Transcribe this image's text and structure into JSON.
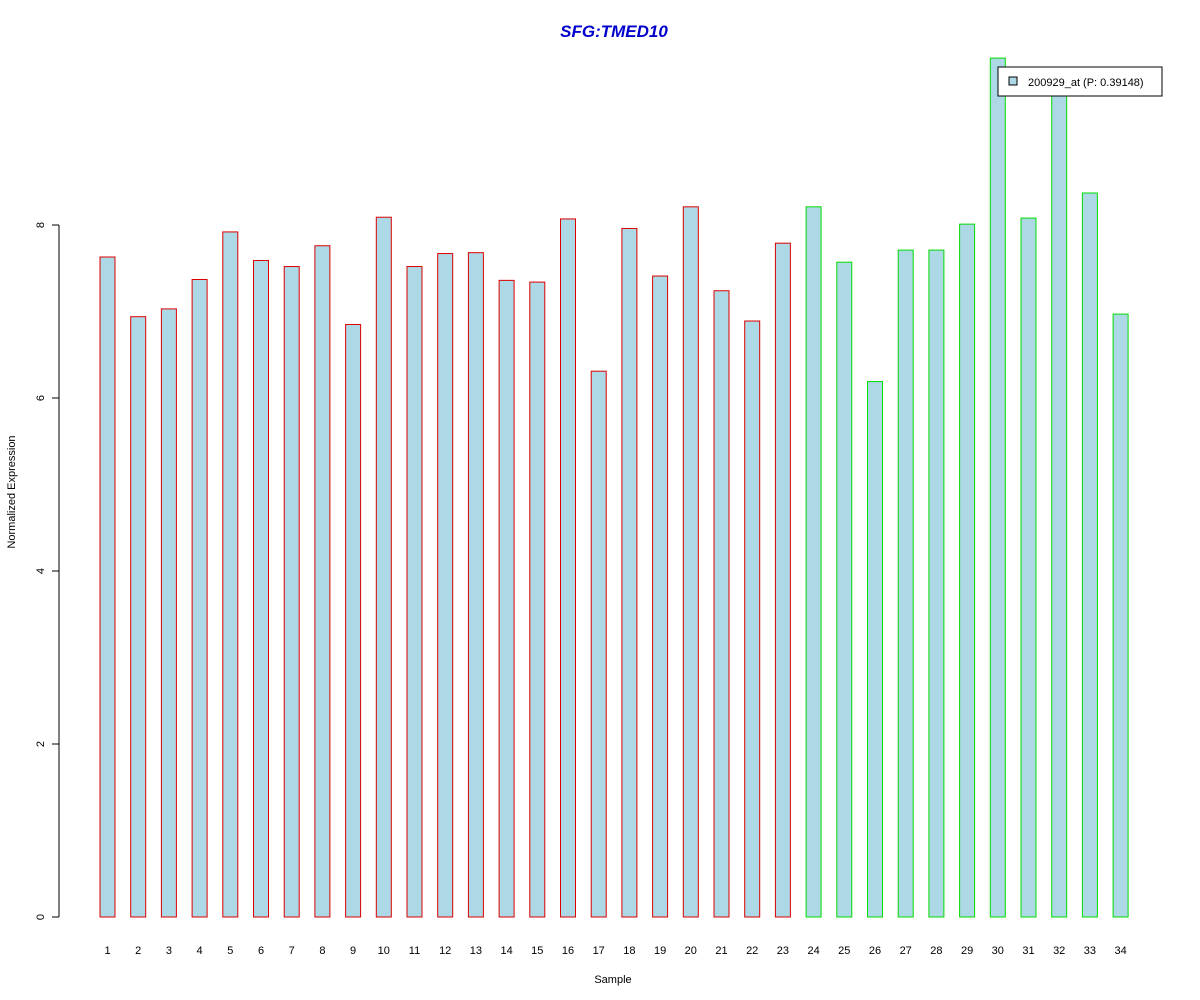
{
  "chart_data": {
    "type": "bar",
    "title": "SFG:TMED10",
    "xlabel": "Sample",
    "ylabel": "Normalized Expression",
    "ylim": [
      0,
      10
    ],
    "y_ticks": [
      "0",
      "2",
      "4",
      "6",
      "8"
    ],
    "grid": false,
    "legend_position": "top-right",
    "categories": [
      "1",
      "2",
      "3",
      "4",
      "5",
      "6",
      "7",
      "8",
      "9",
      "10",
      "11",
      "12",
      "13",
      "14",
      "15",
      "16",
      "17",
      "18",
      "19",
      "20",
      "21",
      "22",
      "23",
      "24",
      "25",
      "26",
      "27",
      "28",
      "29",
      "30",
      "31",
      "32",
      "33",
      "34"
    ],
    "series": [
      {
        "name": "200929_at (P: 0.39148)",
        "values": [
          7.63,
          6.94,
          7.03,
          7.37,
          7.92,
          7.59,
          7.52,
          7.76,
          6.85,
          8.09,
          7.52,
          7.67,
          7.68,
          7.36,
          7.34,
          8.07,
          6.31,
          7.96,
          7.41,
          8.21,
          7.24,
          6.89,
          7.79,
          8.21,
          7.57,
          6.19,
          7.71,
          7.71,
          8.01,
          9.93,
          8.08,
          9.62,
          8.37,
          6.97
        ]
      }
    ],
    "group_of_sample": [
      "A",
      "A",
      "A",
      "A",
      "A",
      "A",
      "A",
      "A",
      "A",
      "A",
      "A",
      "A",
      "A",
      "A",
      "A",
      "A",
      "A",
      "A",
      "A",
      "A",
      "A",
      "A",
      "A",
      "B",
      "B",
      "B",
      "B",
      "B",
      "B",
      "B",
      "B",
      "B",
      "B",
      "B"
    ],
    "colors": {
      "title": "#0000CC",
      "bar_fill": "#ADD8E6",
      "border_group_A": "#DD0000",
      "border_group_B": "#00DD00",
      "axis": "#000000",
      "legend_border": "#000000"
    }
  }
}
